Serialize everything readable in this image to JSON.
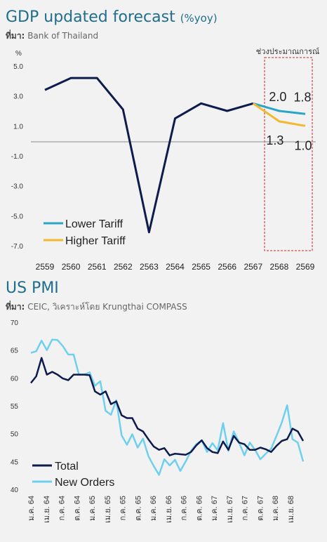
{
  "chart_data": [
    {
      "type": "line",
      "title": "GDP updated forecast",
      "title_unit": "(%yoy)",
      "source_label": "ที่มา:",
      "source_text": "Bank of Thailand",
      "ylabel": "%",
      "ylim": [
        -7,
        5
      ],
      "yticks": [
        "5.0",
        "3.0",
        "1.0",
        "-1.0",
        "-3.0",
        "-5.0",
        "-7.0"
      ],
      "categories": [
        "2559",
        "2560",
        "2561",
        "2562",
        "2563",
        "2564",
        "2565",
        "2566",
        "2567",
        "2568",
        "2569"
      ],
      "forecast_label": "ช่วงประมาณการณ์",
      "series": [
        {
          "name": "",
          "values": [
            3.4,
            4.2,
            4.2,
            2.1,
            -6.1,
            1.5,
            2.5,
            2.0,
            2.5,
            null,
            null
          ],
          "color": "#0e1b4d"
        },
        {
          "name": "Lower Tariff",
          "values": [
            null,
            null,
            null,
            null,
            null,
            null,
            null,
            null,
            2.5,
            2.0,
            1.8
          ],
          "color": "#2aa5c8"
        },
        {
          "name": "Higher Tariff",
          "values": [
            null,
            null,
            null,
            null,
            null,
            null,
            null,
            null,
            2.5,
            1.3,
            1.0
          ],
          "color": "#f2b830"
        }
      ],
      "data_labels": {
        "lower_2568": "2.0",
        "lower_2569": "1.8",
        "higher_2568": "1.3",
        "higher_2569": "1.0"
      },
      "legend": "bottom-left",
      "grid": false
    },
    {
      "type": "line",
      "title": "US PMI",
      "source_label": "ที่มา:",
      "source_text": "CEIC, วิเคราะห์โดย Krungthai COMPASS",
      "ylim": [
        40,
        70
      ],
      "yticks": [
        "70",
        "65",
        "60",
        "55",
        "50",
        "45",
        "40"
      ],
      "xticks": [
        "ม.ค. 64",
        "เม.ย. 64",
        "ก.ค. 64",
        "ต.ค. 64",
        "ม.ค. 65",
        "เม.ย. 65",
        "ก.ค. 65",
        "ต.ค. 65",
        "ม.ค. 66",
        "เม.ย. 66",
        "ก.ค. 66",
        "ต.ค. 66",
        "ม.ค. 67",
        "เม.ย. 67",
        "ก.ค. 67",
        "ต.ค. 67",
        "ม.ค. 68",
        "เม.ย. 68"
      ],
      "series": [
        {
          "name": "Total",
          "color": "#0e1b4d",
          "values": [
            59.1,
            60.3,
            63.6,
            60.6,
            61.1,
            60.6,
            59.9,
            59.6,
            60.6,
            60.6,
            60.6,
            60.5,
            57.6,
            57.0,
            57.6,
            55.3,
            55.8,
            53.3,
            52.8,
            52.8,
            50.9,
            50.4,
            49.0,
            47.7,
            47.1,
            47.4,
            46.1,
            46.4,
            46.3,
            46.2,
            46.7,
            47.9,
            48.8,
            47.4,
            46.7,
            46.5,
            48.6,
            47.1,
            49.6,
            48.4,
            48.1,
            47.1,
            47.1,
            47.5,
            47.2,
            46.7,
            47.8,
            48.7,
            49.0,
            50.9,
            50.4,
            48.7
          ]
        },
        {
          "name": "New Orders",
          "color": "#6fd0ee",
          "values": [
            64.5,
            64.8,
            66.7,
            65.0,
            66.9,
            66.8,
            65.7,
            64.2,
            64.2,
            60.6,
            60.6,
            61.0,
            58.6,
            59.4,
            54.1,
            53.4,
            56.0,
            49.7,
            48.0,
            49.9,
            47.5,
            49.1,
            46.0,
            44.2,
            42.6,
            45.4,
            44.3,
            45.3,
            43.3,
            45.0,
            46.9,
            48.1,
            48.8,
            46.7,
            48.3,
            47.0,
            51.9,
            46.9,
            50.4,
            48.4,
            46.1,
            48.4,
            47.1,
            45.4,
            46.4,
            47.3,
            49.6,
            52.0,
            55.1,
            49.0,
            48.4,
            45.0
          ]
        }
      ],
      "legend": "bottom-left",
      "grid": false
    }
  ]
}
